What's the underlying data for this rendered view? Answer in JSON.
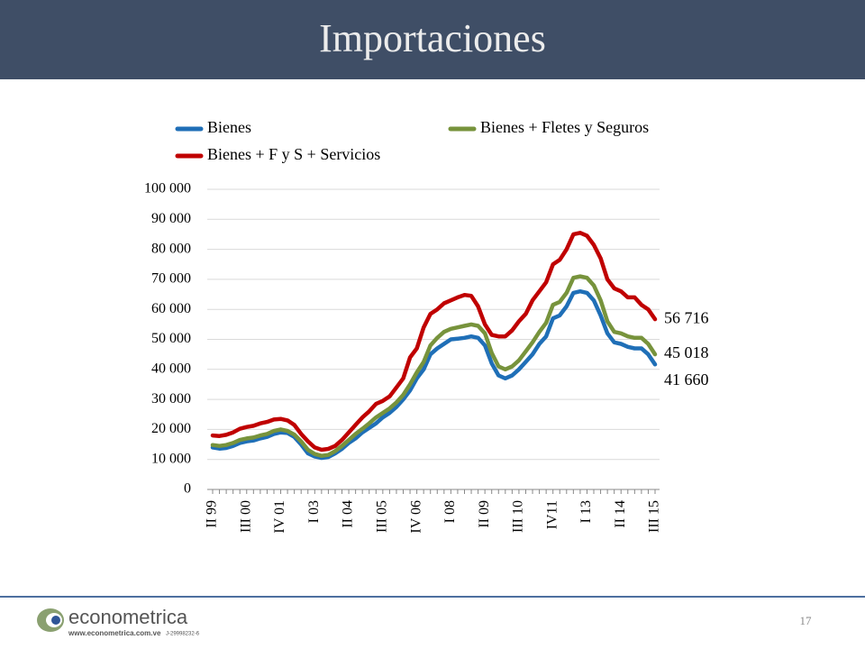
{
  "chart_data": {
    "type": "line",
    "title": "Importaciones",
    "categories": [
      "II 99",
      null,
      null,
      null,
      null,
      "III 00",
      null,
      null,
      null,
      null,
      "IV 01",
      null,
      null,
      null,
      null,
      "I 03",
      null,
      null,
      null,
      null,
      "II 04",
      null,
      null,
      null,
      null,
      "III 05",
      null,
      null,
      null,
      null,
      "IV 06",
      null,
      null,
      null,
      null,
      "I 08",
      null,
      null,
      null,
      null,
      "II 09",
      null,
      null,
      null,
      null,
      "III 10",
      null,
      null,
      null,
      null,
      "IV11",
      null,
      null,
      null,
      null,
      "I 13",
      null,
      null,
      null,
      null,
      "II 14",
      null,
      null,
      null,
      null,
      "III 15"
    ],
    "series": [
      {
        "name": "Bienes",
        "color": "#1f6fb7",
        "values": [
          14000,
          13600,
          13800,
          14500,
          15500,
          16000,
          16300,
          17000,
          17500,
          18500,
          19000,
          18800,
          17500,
          15000,
          12000,
          11000,
          10500,
          10800,
          12000,
          13500,
          15500,
          17000,
          19000,
          20500,
          22000,
          24000,
          25500,
          27500,
          30000,
          33000,
          37000,
          40000,
          45000,
          47000,
          48500,
          50000,
          50200,
          50500,
          51000,
          50500,
          48000,
          42000,
          38000,
          37000,
          38000,
          40000,
          42500,
          45000,
          48500,
          51000,
          57000,
          58000,
          61000,
          65500,
          66000,
          65500,
          63000,
          58000,
          52000,
          49000,
          48500,
          47500,
          47000,
          47000,
          45000,
          41660
        ],
        "value_labels": [
          null,
          null,
          null,
          null,
          null,
          null,
          null,
          null,
          null,
          null,
          null,
          null,
          null,
          null,
          null,
          null,
          null,
          null,
          null,
          null,
          null,
          null,
          null,
          null,
          null,
          null,
          null,
          null,
          null,
          null,
          null,
          null,
          null,
          null,
          null,
          null,
          null,
          null,
          null,
          null,
          null,
          null,
          null,
          null,
          null,
          null,
          null,
          null,
          null,
          null,
          null,
          null,
          null,
          null,
          null,
          null,
          null,
          null,
          null,
          null,
          null,
          null,
          null,
          null,
          null,
          "41 660"
        ]
      },
      {
        "name": "Bienes + Fletes y Seguros",
        "color": "#77933c",
        "values": [
          14800,
          14500,
          14800,
          15500,
          16500,
          17000,
          17300,
          18000,
          18500,
          19500,
          20000,
          19500,
          18300,
          16000,
          13200,
          11800,
          11200,
          11500,
          12800,
          14500,
          16500,
          18500,
          20200,
          22000,
          24000,
          25500,
          27000,
          29000,
          31500,
          35000,
          39000,
          42500,
          48000,
          50500,
          52500,
          53500,
          54000,
          54500,
          55000,
          54500,
          52000,
          45500,
          41000,
          40000,
          41000,
          43000,
          46000,
          49000,
          52500,
          55500,
          61500,
          62500,
          65500,
          70500,
          71000,
          70500,
          68000,
          63000,
          56000,
          52500,
          52000,
          51000,
          50500,
          50500,
          48500,
          45018
        ],
        "value_labels": [
          null,
          null,
          null,
          null,
          null,
          null,
          null,
          null,
          null,
          null,
          null,
          null,
          null,
          null,
          null,
          null,
          null,
          null,
          null,
          null,
          null,
          null,
          null,
          null,
          null,
          null,
          null,
          null,
          null,
          null,
          null,
          null,
          null,
          null,
          null,
          null,
          null,
          null,
          null,
          null,
          null,
          null,
          null,
          null,
          null,
          null,
          null,
          null,
          null,
          null,
          null,
          null,
          null,
          null,
          null,
          null,
          null,
          null,
          null,
          null,
          null,
          null,
          null,
          null,
          null,
          "45 018"
        ]
      },
      {
        "name": "Bienes + F y S  + Servicios",
        "color": "#c00000",
        "values": [
          18000,
          17800,
          18200,
          19000,
          20200,
          20800,
          21200,
          22000,
          22500,
          23300,
          23500,
          23000,
          21500,
          18500,
          16000,
          14000,
          13200,
          13500,
          14500,
          16500,
          19000,
          21500,
          24000,
          26000,
          28500,
          29500,
          31000,
          34000,
          37000,
          44000,
          47000,
          54000,
          58500,
          60000,
          62000,
          63000,
          64000,
          64800,
          64500,
          61000,
          55000,
          51500,
          51000,
          51000,
          53000,
          56000,
          58500,
          63000,
          66000,
          69000,
          75000,
          76500,
          80000,
          85000,
          85500,
          84500,
          81500,
          77000,
          70000,
          67000,
          66000,
          64000,
          64000,
          61500,
          60000,
          56716
        ],
        "value_labels": [
          null,
          null,
          null,
          null,
          null,
          null,
          null,
          null,
          null,
          null,
          null,
          null,
          null,
          null,
          null,
          null,
          null,
          null,
          null,
          null,
          null,
          null,
          null,
          null,
          null,
          null,
          null,
          null,
          null,
          null,
          null,
          null,
          null,
          null,
          null,
          null,
          null,
          null,
          null,
          null,
          null,
          null,
          null,
          null,
          null,
          null,
          null,
          null,
          null,
          null,
          null,
          null,
          null,
          null,
          null,
          null,
          null,
          null,
          null,
          null,
          null,
          null,
          null,
          null,
          null,
          "56 716"
        ]
      }
    ],
    "ylim": [
      0,
      100000
    ],
    "yticks": [
      0,
      {
        "value": 10000,
        "label": "10 000"
      },
      {
        "value": 20000,
        "label": "20 000"
      },
      {
        "value": 30000,
        "label": "30 000"
      },
      {
        "value": 40000,
        "label": "40 000"
      },
      {
        "value": 50000,
        "label": "50 000"
      },
      {
        "value": 60000,
        "label": "60 000"
      },
      {
        "value": 70000,
        "label": "70 000"
      },
      {
        "value": 80000,
        "label": "80 000"
      },
      {
        "value": 90000,
        "label": "90 000"
      },
      {
        "value": 100000,
        "label": "100 000"
      }
    ],
    "grid": true,
    "legend": "top"
  },
  "slide": {
    "page_number": "17",
    "logo": {
      "name": "econometrica",
      "url": "www.econometrica.com.ve",
      "id": "J-29998232-6"
    }
  }
}
